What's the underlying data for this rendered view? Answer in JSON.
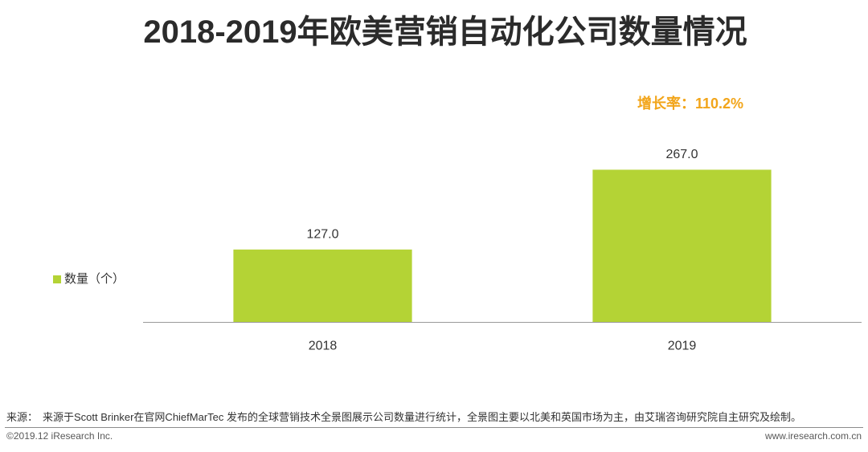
{
  "chart_data": {
    "type": "bar",
    "title": "2018-2019年欧美营销自动化公司数量情况",
    "xlabel": "",
    "ylabel": "",
    "categories": [
      "2018",
      "2019"
    ],
    "series": [
      {
        "name": "数量（个）",
        "values": [
          127.0,
          267.0
        ],
        "color": "#B4D335"
      }
    ],
    "data_labels": [
      "127.0",
      "267.0"
    ],
    "ylim": [
      0,
      300
    ],
    "grid": false,
    "legend": "left",
    "annotations": [
      {
        "text": "增长率：110.2%",
        "color": "#F2A51A"
      }
    ]
  },
  "footer": {
    "source_label": "来源：",
    "source_text": "来源于Scott Brinker在官网ChiefMarTec 发布的全球营销技术全景图展示公司数量进行统计，全景图主要以北美和英国市场为主，由艾瑞咨询研究院自主研究及绘制。",
    "copyright": "©2019.12 iResearch Inc.",
    "website": "www.iresearch.com.cn"
  },
  "colors": {
    "title": "#2B2B2B",
    "text": "#333333",
    "axis": "#9A9A9A",
    "footer_text": "#595959"
  }
}
